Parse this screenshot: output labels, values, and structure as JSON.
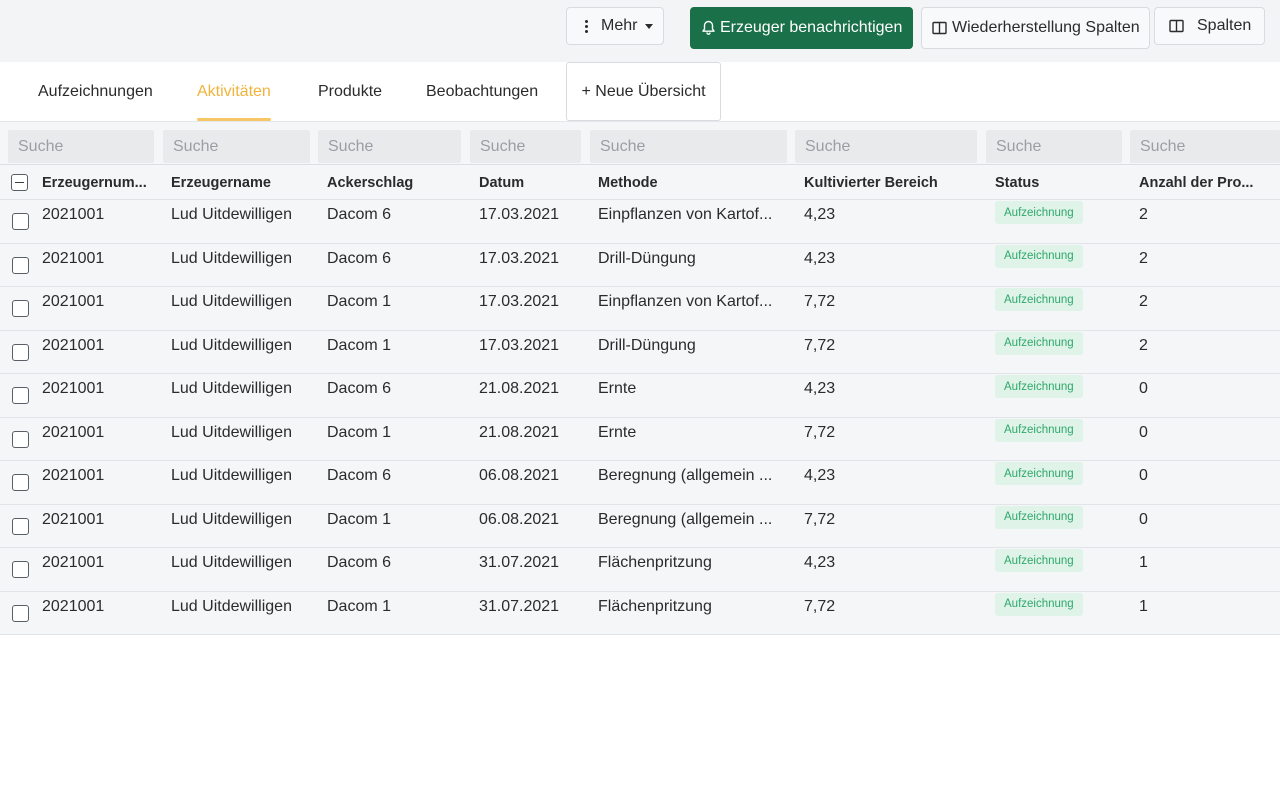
{
  "toolbar": {
    "more_label": "Mehr",
    "notify_label": "Erzeuger benachrichtigen",
    "restore_label": "Wiederherstellung Spalten",
    "columns_label": "Spalten",
    "notify_color": "#1a7048"
  },
  "tabs": [
    {
      "label": "Aufzeichnungen"
    },
    {
      "label": "Aktivitäten"
    },
    {
      "label": "Produkte"
    },
    {
      "label": "Beobachtungen"
    }
  ],
  "new_view_label": "+ Neue Übersicht",
  "active_tab_color": "#f0b43c",
  "filter_placeholder": "Suche",
  "columns": [
    "Erzeugernum...",
    "Erzeugername",
    "Ackerschlag",
    "Datum",
    "Methode",
    "Kultivierter Bereich",
    "Status",
    "Anzahl der Pro..."
  ],
  "rows": [
    {
      "nr": "2021001",
      "name": "Lud Uitdewilligen",
      "field": "Dacom 6",
      "date": "17.03.2021",
      "method": "Einpflanzen von Kartof...",
      "area": "4,23",
      "status": "Aufzeichnung",
      "count": "2"
    },
    {
      "nr": "2021001",
      "name": "Lud Uitdewilligen",
      "field": "Dacom 6",
      "date": "17.03.2021",
      "method": "Drill-Düngung",
      "area": "4,23",
      "status": "Aufzeichnung",
      "count": "2"
    },
    {
      "nr": "2021001",
      "name": "Lud Uitdewilligen",
      "field": "Dacom 1",
      "date": "17.03.2021",
      "method": "Einpflanzen von Kartof...",
      "area": "7,72",
      "status": "Aufzeichnung",
      "count": "2"
    },
    {
      "nr": "2021001",
      "name": "Lud Uitdewilligen",
      "field": "Dacom 1",
      "date": "17.03.2021",
      "method": "Drill-Düngung",
      "area": "7,72",
      "status": "Aufzeichnung",
      "count": "2"
    },
    {
      "nr": "2021001",
      "name": "Lud Uitdewilligen",
      "field": "Dacom 6",
      "date": "21.08.2021",
      "method": "Ernte",
      "area": "4,23",
      "status": "Aufzeichnung",
      "count": "0"
    },
    {
      "nr": "2021001",
      "name": "Lud Uitdewilligen",
      "field": "Dacom 1",
      "date": "21.08.2021",
      "method": "Ernte",
      "area": "7,72",
      "status": "Aufzeichnung",
      "count": "0"
    },
    {
      "nr": "2021001",
      "name": "Lud Uitdewilligen",
      "field": "Dacom 6",
      "date": "06.08.2021",
      "method": "Beregnung (allgemein ...",
      "area": "4,23",
      "status": "Aufzeichnung",
      "count": "0"
    },
    {
      "nr": "2021001",
      "name": "Lud Uitdewilligen",
      "field": "Dacom 1",
      "date": "06.08.2021",
      "method": "Beregnung (allgemein ...",
      "area": "7,72",
      "status": "Aufzeichnung",
      "count": "0"
    },
    {
      "nr": "2021001",
      "name": "Lud Uitdewilligen",
      "field": "Dacom 6",
      "date": "31.07.2021",
      "method": "Flächenpritzung",
      "area": "4,23",
      "status": "Aufzeichnung",
      "count": "1"
    },
    {
      "nr": "2021001",
      "name": "Lud Uitdewilligen",
      "field": "Dacom 1",
      "date": "31.07.2021",
      "method": "Flächenpritzung",
      "area": "7,72",
      "status": "Aufzeichnung",
      "count": "1"
    }
  ]
}
